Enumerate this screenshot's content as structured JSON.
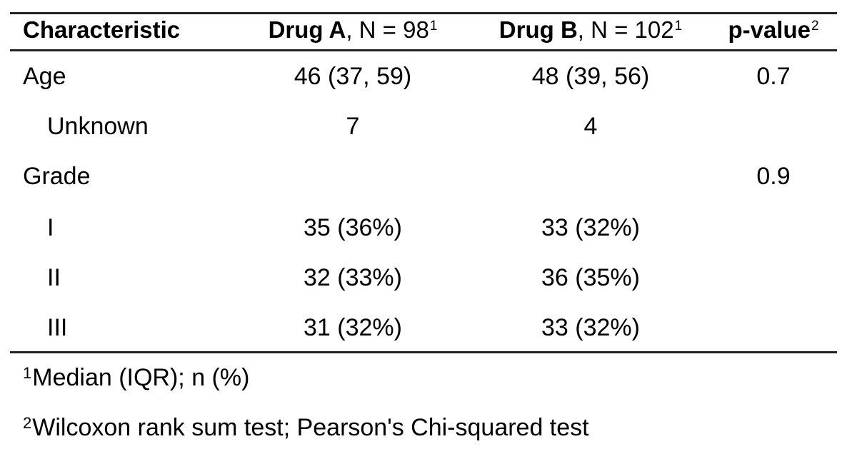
{
  "table": {
    "header": {
      "characteristic": "Characteristic",
      "drug_a_name": "Drug A",
      "drug_a_n": ", N = 98",
      "drug_a_sup": "1",
      "drug_b_name": "Drug B",
      "drug_b_n": ", N = 102",
      "drug_b_sup": "1",
      "p_value": "p-value",
      "p_value_sup": "2"
    },
    "rows": [
      {
        "label": "Age",
        "drug_a": "46 (37, 59)",
        "drug_b": "48 (39, 56)",
        "p_value": "0.7"
      },
      {
        "label": "Unknown",
        "drug_a": "7",
        "drug_b": "4",
        "p_value": ""
      },
      {
        "label": "Grade",
        "drug_a": "",
        "drug_b": "",
        "p_value": "0.9"
      },
      {
        "label": "I",
        "drug_a": "35 (36%)",
        "drug_b": "33 (32%)",
        "p_value": ""
      },
      {
        "label": "II",
        "drug_a": "32 (33%)",
        "drug_b": "36 (35%)",
        "p_value": ""
      },
      {
        "label": "III",
        "drug_a": "31 (32%)",
        "drug_b": "33 (32%)",
        "p_value": ""
      }
    ]
  },
  "footnotes": [
    {
      "marker": "1",
      "text": "Median (IQR); n (%)"
    },
    {
      "marker": "2",
      "text": "Wilcoxon rank sum test; Pearson's Chi-squared test"
    }
  ]
}
